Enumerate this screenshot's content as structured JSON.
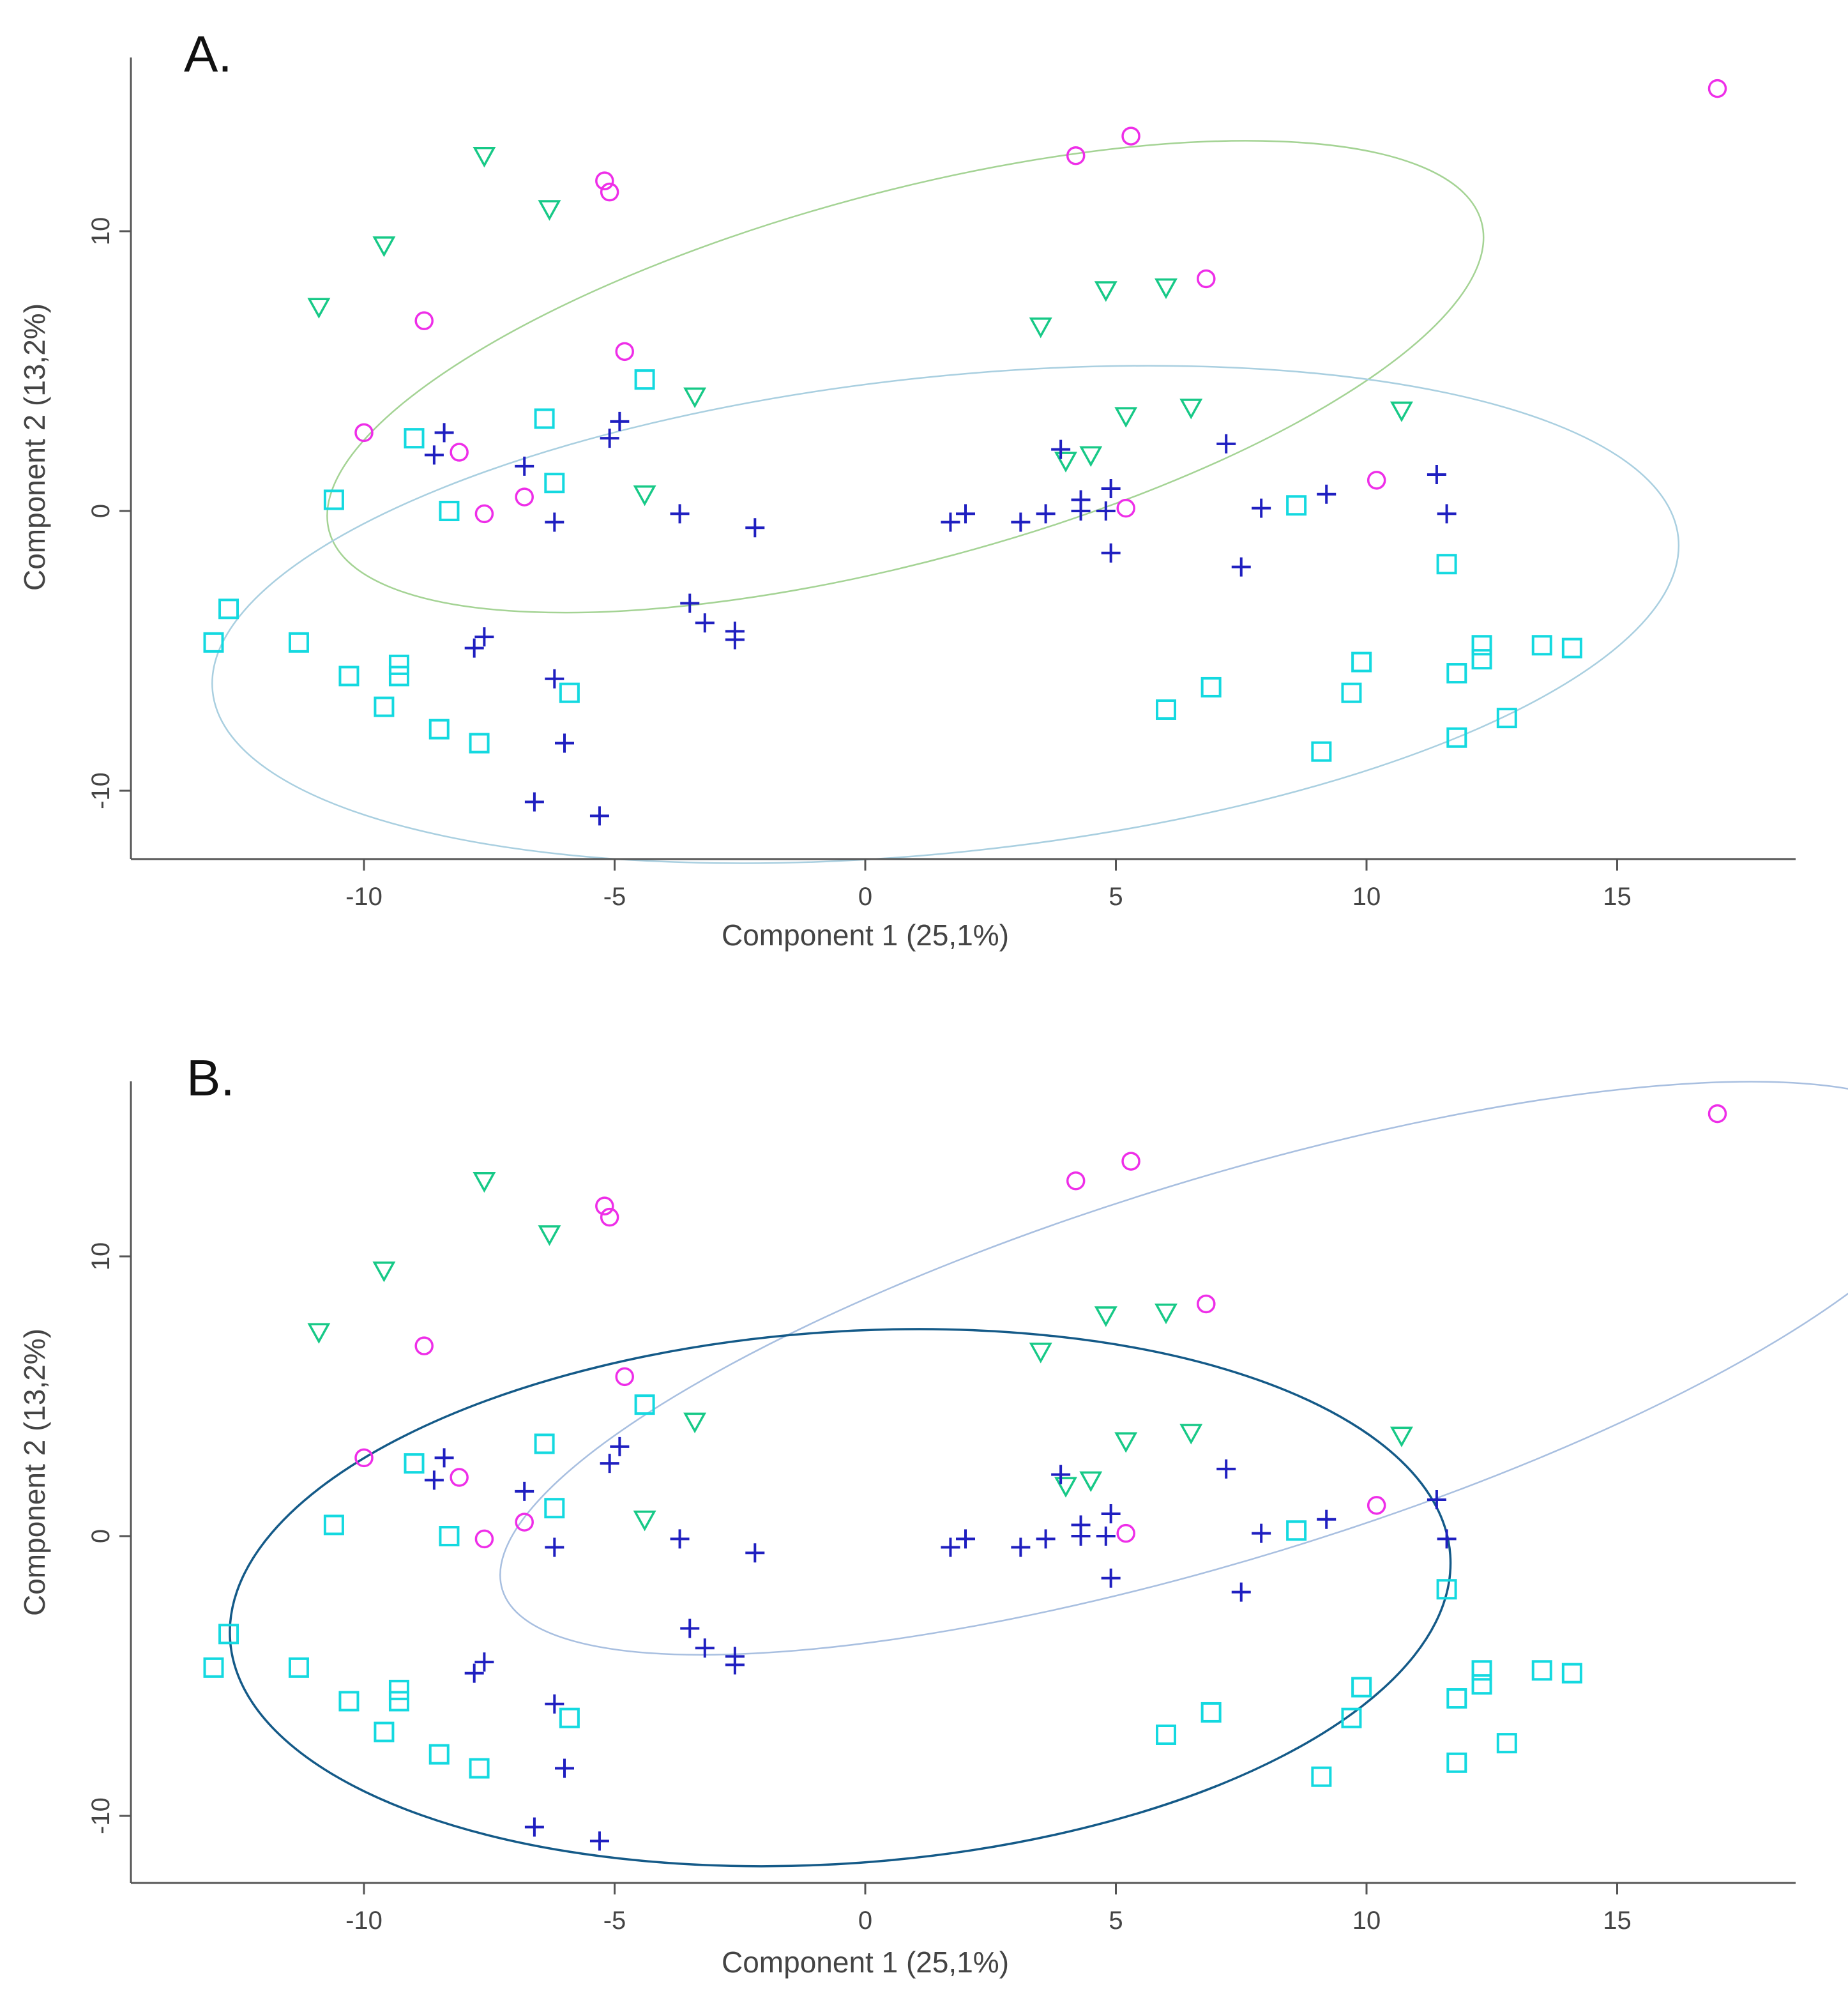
{
  "figure": {
    "colors": {
      "circle": "#ee2ee8",
      "triangle": "#17c987",
      "plus": "#1f1fc0",
      "square": "#14d9e0"
    }
  },
  "chart_data": [
    {
      "type": "scatter",
      "panel_label": "A.",
      "xlabel": "Component 1 (25,1%)",
      "ylabel": "Component 2 (13,2%)",
      "xlim": [
        -14.5,
        18.5
      ],
      "ylim": [
        -12.5,
        16
      ],
      "xticks": [
        -10,
        -5,
        0,
        5,
        10,
        15
      ],
      "yticks": [
        -10,
        0,
        10
      ],
      "grid": false,
      "series": [
        {
          "marker": "circle",
          "color": "#ee2ee8",
          "points": [
            [
              17,
              15.1
            ],
            [
              5.3,
              13.4
            ],
            [
              4.2,
              12.7
            ],
            [
              -5.2,
              11.8
            ],
            [
              -5.1,
              11.4
            ],
            [
              6.8,
              8.3
            ],
            [
              -8.8,
              6.8
            ],
            [
              -4.8,
              5.7
            ],
            [
              -10,
              2.8
            ],
            [
              -8.1,
              2.1
            ],
            [
              -7.6,
              -0.1
            ],
            [
              -6.8,
              0.5
            ],
            [
              10.2,
              1.1
            ],
            [
              5.2,
              0.1
            ]
          ]
        },
        {
          "marker": "triangle",
          "color": "#17c987",
          "points": [
            [
              -7.6,
              12.7
            ],
            [
              -6.3,
              10.8
            ],
            [
              -9.6,
              9.5
            ],
            [
              -10.9,
              7.3
            ],
            [
              4.8,
              7.9
            ],
            [
              6,
              8
            ],
            [
              3.5,
              6.6
            ],
            [
              -3.4,
              4.1
            ],
            [
              5.2,
              3.4
            ],
            [
              6.5,
              3.7
            ],
            [
              10.7,
              3.6
            ],
            [
              4,
              1.8
            ],
            [
              4.5,
              2
            ],
            [
              -4.4,
              0.6
            ]
          ]
        },
        {
          "marker": "plus",
          "color": "#1f1fc0",
          "points": [
            [
              -8.4,
              2.8
            ],
            [
              -8.6,
              2
            ],
            [
              -6.8,
              1.6
            ],
            [
              -4.9,
              3.2
            ],
            [
              -5.1,
              2.6
            ],
            [
              -6.2,
              -0.4
            ],
            [
              -3.7,
              -0.1
            ],
            [
              -2.2,
              -0.6
            ],
            [
              -3.5,
              -3.3
            ],
            [
              -3.2,
              -4
            ],
            [
              -2.6,
              -4.3
            ],
            [
              -2.6,
              -4.6
            ],
            [
              -7.6,
              -4.5
            ],
            [
              -7.8,
              -4.9
            ],
            [
              -6.2,
              -6
            ],
            [
              -6,
              -8.3
            ],
            [
              -6.6,
              -10.4
            ],
            [
              -5.3,
              -10.9
            ],
            [
              1.7,
              -0.4
            ],
            [
              2,
              -0.1
            ],
            [
              3.1,
              -0.4
            ],
            [
              3.6,
              -0.1
            ],
            [
              3.9,
              2.2
            ],
            [
              4.3,
              0.4
            ],
            [
              4.3,
              0
            ],
            [
              4.8,
              0
            ],
            [
              4.9,
              0.8
            ],
            [
              4.9,
              -1.5
            ],
            [
              7.2,
              2.4
            ],
            [
              7.5,
              -2
            ],
            [
              7.9,
              0.1
            ],
            [
              9.2,
              0.6
            ],
            [
              11.4,
              1.3
            ],
            [
              11.6,
              -0.1
            ]
          ]
        },
        {
          "marker": "square",
          "color": "#14d9e0",
          "points": [
            [
              -4.4,
              4.7
            ],
            [
              -6.4,
              3.3
            ],
            [
              -9,
              2.6
            ],
            [
              -6.2,
              1
            ],
            [
              -10.6,
              0.4
            ],
            [
              -8.3,
              0
            ],
            [
              -12.7,
              -3.5
            ],
            [
              -13,
              -4.7
            ],
            [
              -11.3,
              -4.7
            ],
            [
              -10.3,
              -5.9
            ],
            [
              -9.3,
              -5.5
            ],
            [
              -9.3,
              -5.9
            ],
            [
              -9.6,
              -7
            ],
            [
              -8.5,
              -7.8
            ],
            [
              -7.7,
              -8.3
            ],
            [
              -5.9,
              -6.5
            ],
            [
              6,
              -7.1
            ],
            [
              6.9,
              -6.3
            ],
            [
              8.6,
              0.2
            ],
            [
              9.1,
              -8.6
            ],
            [
              9.7,
              -6.5
            ],
            [
              9.9,
              -5.4
            ],
            [
              11.6,
              -1.9
            ],
            [
              11.8,
              -5.8
            ],
            [
              11.8,
              -8.1
            ],
            [
              12.3,
              -4.8
            ],
            [
              12.3,
              -5.3
            ],
            [
              12.8,
              -7.4
            ],
            [
              13.5,
              -4.8
            ],
            [
              14.1,
              -4.9
            ]
          ]
        }
      ],
      "ellipses": [
        {
          "center": [
            0.8,
            4.8
          ],
          "semi_axes": [
            11.9,
            6.6
          ],
          "rotation_deg": -15,
          "color": "#a4d394",
          "stroke_width": 2.5
        },
        {
          "center": [
            1.6,
            -3.7
          ],
          "semi_axes": [
            14.7,
            8.5
          ],
          "rotation_deg": -6,
          "color": "#a9cfe0",
          "stroke_width": 2.5
        }
      ]
    },
    {
      "type": "scatter",
      "panel_label": "B.",
      "xlabel": "Component 1 (25,1%)",
      "ylabel": "Component 2 (13,2%)",
      "xlim": [
        -14.5,
        18.5
      ],
      "ylim": [
        -12.5,
        16
      ],
      "xticks": [
        -10,
        -5,
        0,
        5,
        10,
        15
      ],
      "yticks": [
        -10,
        0,
        10
      ],
      "grid": false,
      "series": [
        {
          "marker": "circle",
          "color": "#ee2ee8",
          "points": [
            [
              17,
              15.1
            ],
            [
              5.3,
              13.4
            ],
            [
              4.2,
              12.7
            ],
            [
              -5.2,
              11.8
            ],
            [
              -5.1,
              11.4
            ],
            [
              6.8,
              8.3
            ],
            [
              -8.8,
              6.8
            ],
            [
              -4.8,
              5.7
            ],
            [
              -10,
              2.8
            ],
            [
              -8.1,
              2.1
            ],
            [
              -7.6,
              -0.1
            ],
            [
              -6.8,
              0.5
            ],
            [
              10.2,
              1.1
            ],
            [
              5.2,
              0.1
            ]
          ]
        },
        {
          "marker": "triangle",
          "color": "#17c987",
          "points": [
            [
              -7.6,
              12.7
            ],
            [
              -6.3,
              10.8
            ],
            [
              -9.6,
              9.5
            ],
            [
              -10.9,
              7.3
            ],
            [
              4.8,
              7.9
            ],
            [
              6,
              8
            ],
            [
              3.5,
              6.6
            ],
            [
              -3.4,
              4.1
            ],
            [
              5.2,
              3.4
            ],
            [
              6.5,
              3.7
            ],
            [
              10.7,
              3.6
            ],
            [
              4,
              1.8
            ],
            [
              4.5,
              2
            ],
            [
              -4.4,
              0.6
            ]
          ]
        },
        {
          "marker": "plus",
          "color": "#1f1fc0",
          "points": [
            [
              -8.4,
              2.8
            ],
            [
              -8.6,
              2
            ],
            [
              -6.8,
              1.6
            ],
            [
              -4.9,
              3.2
            ],
            [
              -5.1,
              2.6
            ],
            [
              -6.2,
              -0.4
            ],
            [
              -3.7,
              -0.1
            ],
            [
              -2.2,
              -0.6
            ],
            [
              -3.5,
              -3.3
            ],
            [
              -3.2,
              -4
            ],
            [
              -2.6,
              -4.3
            ],
            [
              -2.6,
              -4.6
            ],
            [
              -7.6,
              -4.5
            ],
            [
              -7.8,
              -4.9
            ],
            [
              -6.2,
              -6
            ],
            [
              -6,
              -8.3
            ],
            [
              -6.6,
              -10.4
            ],
            [
              -5.3,
              -10.9
            ],
            [
              1.7,
              -0.4
            ],
            [
              2,
              -0.1
            ],
            [
              3.1,
              -0.4
            ],
            [
              3.6,
              -0.1
            ],
            [
              3.9,
              2.2
            ],
            [
              4.3,
              0.4
            ],
            [
              4.3,
              0
            ],
            [
              4.8,
              0
            ],
            [
              4.9,
              0.8
            ],
            [
              4.9,
              -1.5
            ],
            [
              7.2,
              2.4
            ],
            [
              7.5,
              -2
            ],
            [
              7.9,
              0.1
            ],
            [
              9.2,
              0.6
            ],
            [
              11.4,
              1.3
            ],
            [
              11.6,
              -0.1
            ]
          ]
        },
        {
          "marker": "square",
          "color": "#14d9e0",
          "points": [
            [
              -4.4,
              4.7
            ],
            [
              -6.4,
              3.3
            ],
            [
              -9,
              2.6
            ],
            [
              -6.2,
              1
            ],
            [
              -10.6,
              0.4
            ],
            [
              -8.3,
              0
            ],
            [
              -12.7,
              -3.5
            ],
            [
              -13,
              -4.7
            ],
            [
              -11.3,
              -4.7
            ],
            [
              -10.3,
              -5.9
            ],
            [
              -9.3,
              -5.5
            ],
            [
              -9.3,
              -5.9
            ],
            [
              -9.6,
              -7
            ],
            [
              -8.5,
              -7.8
            ],
            [
              -7.7,
              -8.3
            ],
            [
              -5.9,
              -6.5
            ],
            [
              6,
              -7.1
            ],
            [
              6.9,
              -6.3
            ],
            [
              8.6,
              0.2
            ],
            [
              9.1,
              -8.6
            ],
            [
              9.7,
              -6.5
            ],
            [
              9.9,
              -5.4
            ],
            [
              11.6,
              -1.9
            ],
            [
              11.8,
              -5.8
            ],
            [
              11.8,
              -8.1
            ],
            [
              12.3,
              -4.8
            ],
            [
              12.3,
              -5.3
            ],
            [
              12.8,
              -7.4
            ],
            [
              13.5,
              -4.8
            ],
            [
              14.1,
              -4.9
            ]
          ]
        }
      ],
      "ellipses": [
        {
          "center": [
            7.2,
            6
          ],
          "semi_axes": [
            15.1,
            6.8
          ],
          "rotation_deg": -17,
          "color": "#a8bfe0",
          "stroke_width": 2.5
        },
        {
          "center": [
            -0.5,
            -2.2
          ],
          "semi_axes": [
            12.2,
            9.5
          ],
          "rotation_deg": -4,
          "color": "#145a88",
          "stroke_width": 3.5
        }
      ]
    }
  ]
}
